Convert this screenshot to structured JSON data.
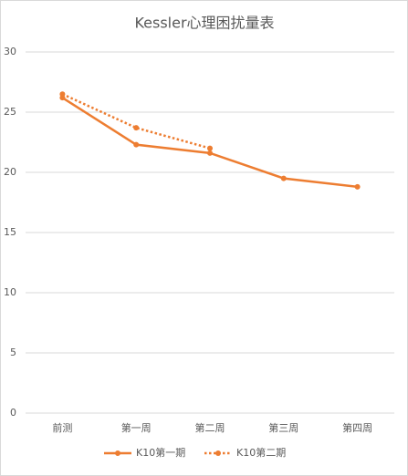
{
  "chart_data": {
    "type": "line",
    "title": "Kessler心理困扰量表",
    "categories": [
      "前测",
      "第一周",
      "第二周",
      "第三周",
      "第四周"
    ],
    "series": [
      {
        "name": "K10第一期",
        "color": "#ed7d31",
        "line_style": "solid",
        "values": [
          26.2,
          22.3,
          21.6,
          19.5,
          18.8
        ]
      },
      {
        "name": "K10第二期",
        "color": "#ed7d31",
        "line_style": "dotted",
        "values": [
          26.5,
          23.7,
          22.0,
          null,
          null
        ]
      }
    ],
    "ylim": [
      0,
      30
    ],
    "yticks": [
      0,
      5,
      10,
      15,
      20,
      25,
      30
    ],
    "grid": true,
    "legend": "bottom"
  }
}
